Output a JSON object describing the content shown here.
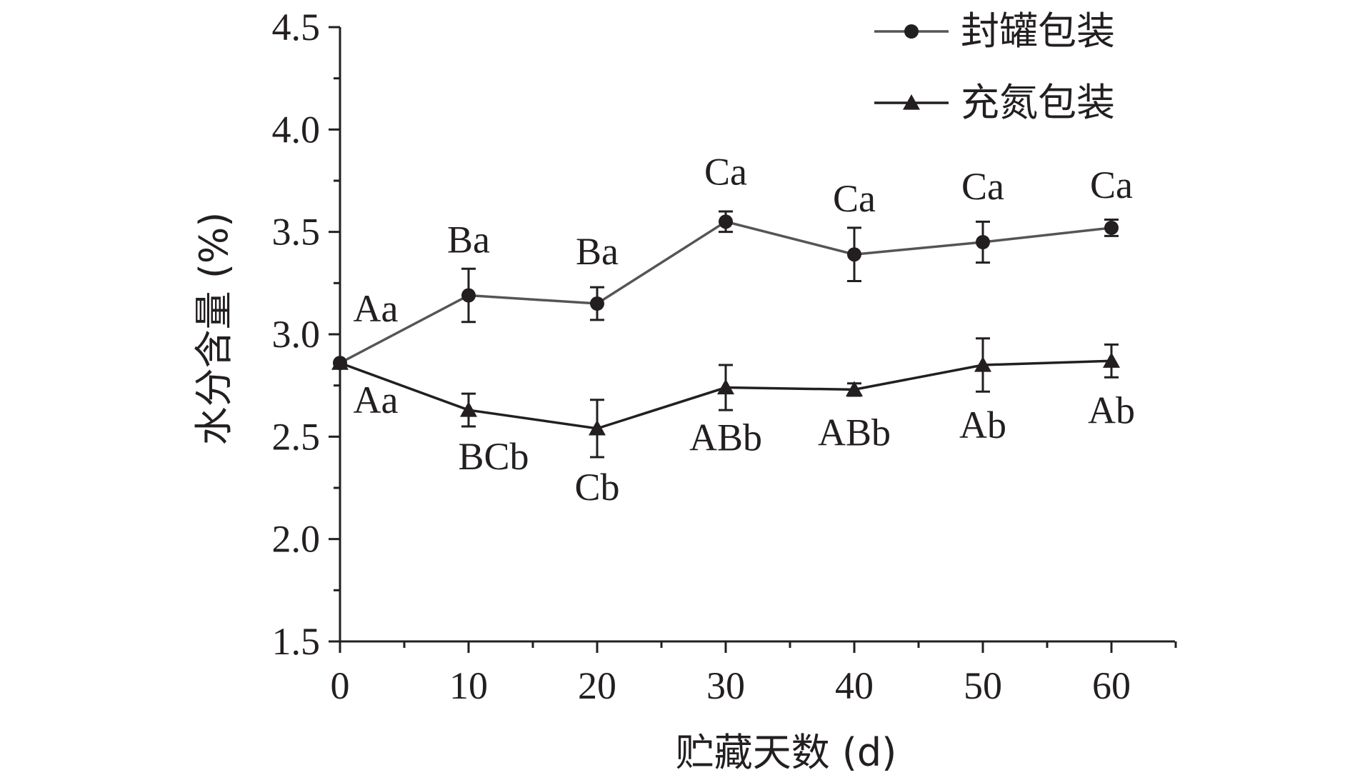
{
  "chart_data": {
    "type": "line",
    "xlabel": "贮藏天数 (d)",
    "ylabel": "水分含量 (%)",
    "x": [
      0,
      10,
      20,
      30,
      40,
      50,
      60
    ],
    "xlim": [
      0,
      65
    ],
    "ylim": [
      1.5,
      4.5
    ],
    "xticks": [
      "0",
      "10",
      "20",
      "30",
      "40",
      "50",
      "60"
    ],
    "yticks": [
      "1.5",
      "2.0",
      "2.5",
      "3.0",
      "3.5",
      "4.0",
      "4.5"
    ],
    "grid": false,
    "legend_position": "top-right",
    "series": [
      {
        "name": "封罐包装",
        "marker": "circle",
        "color": "#555555",
        "values": [
          2.86,
          3.19,
          3.15,
          3.55,
          3.39,
          3.45,
          3.52
        ],
        "errors": [
          0.0,
          0.13,
          0.08,
          0.05,
          0.13,
          0.1,
          0.04
        ],
        "labels": [
          "Aa",
          "Ba",
          "Ba",
          "Ca",
          "Ca",
          "Ca",
          "Ca"
        ]
      },
      {
        "name": "充氮包装",
        "marker": "triangle",
        "color": "#231f20",
        "values": [
          2.86,
          2.63,
          2.54,
          2.74,
          2.73,
          2.85,
          2.87
        ],
        "errors": [
          0.0,
          0.08,
          0.14,
          0.11,
          0.03,
          0.13,
          0.08
        ],
        "labels": [
          "Aa",
          "BCb",
          "Cb",
          "ABb",
          "ABb",
          "Ab",
          "Ab"
        ]
      }
    ]
  }
}
